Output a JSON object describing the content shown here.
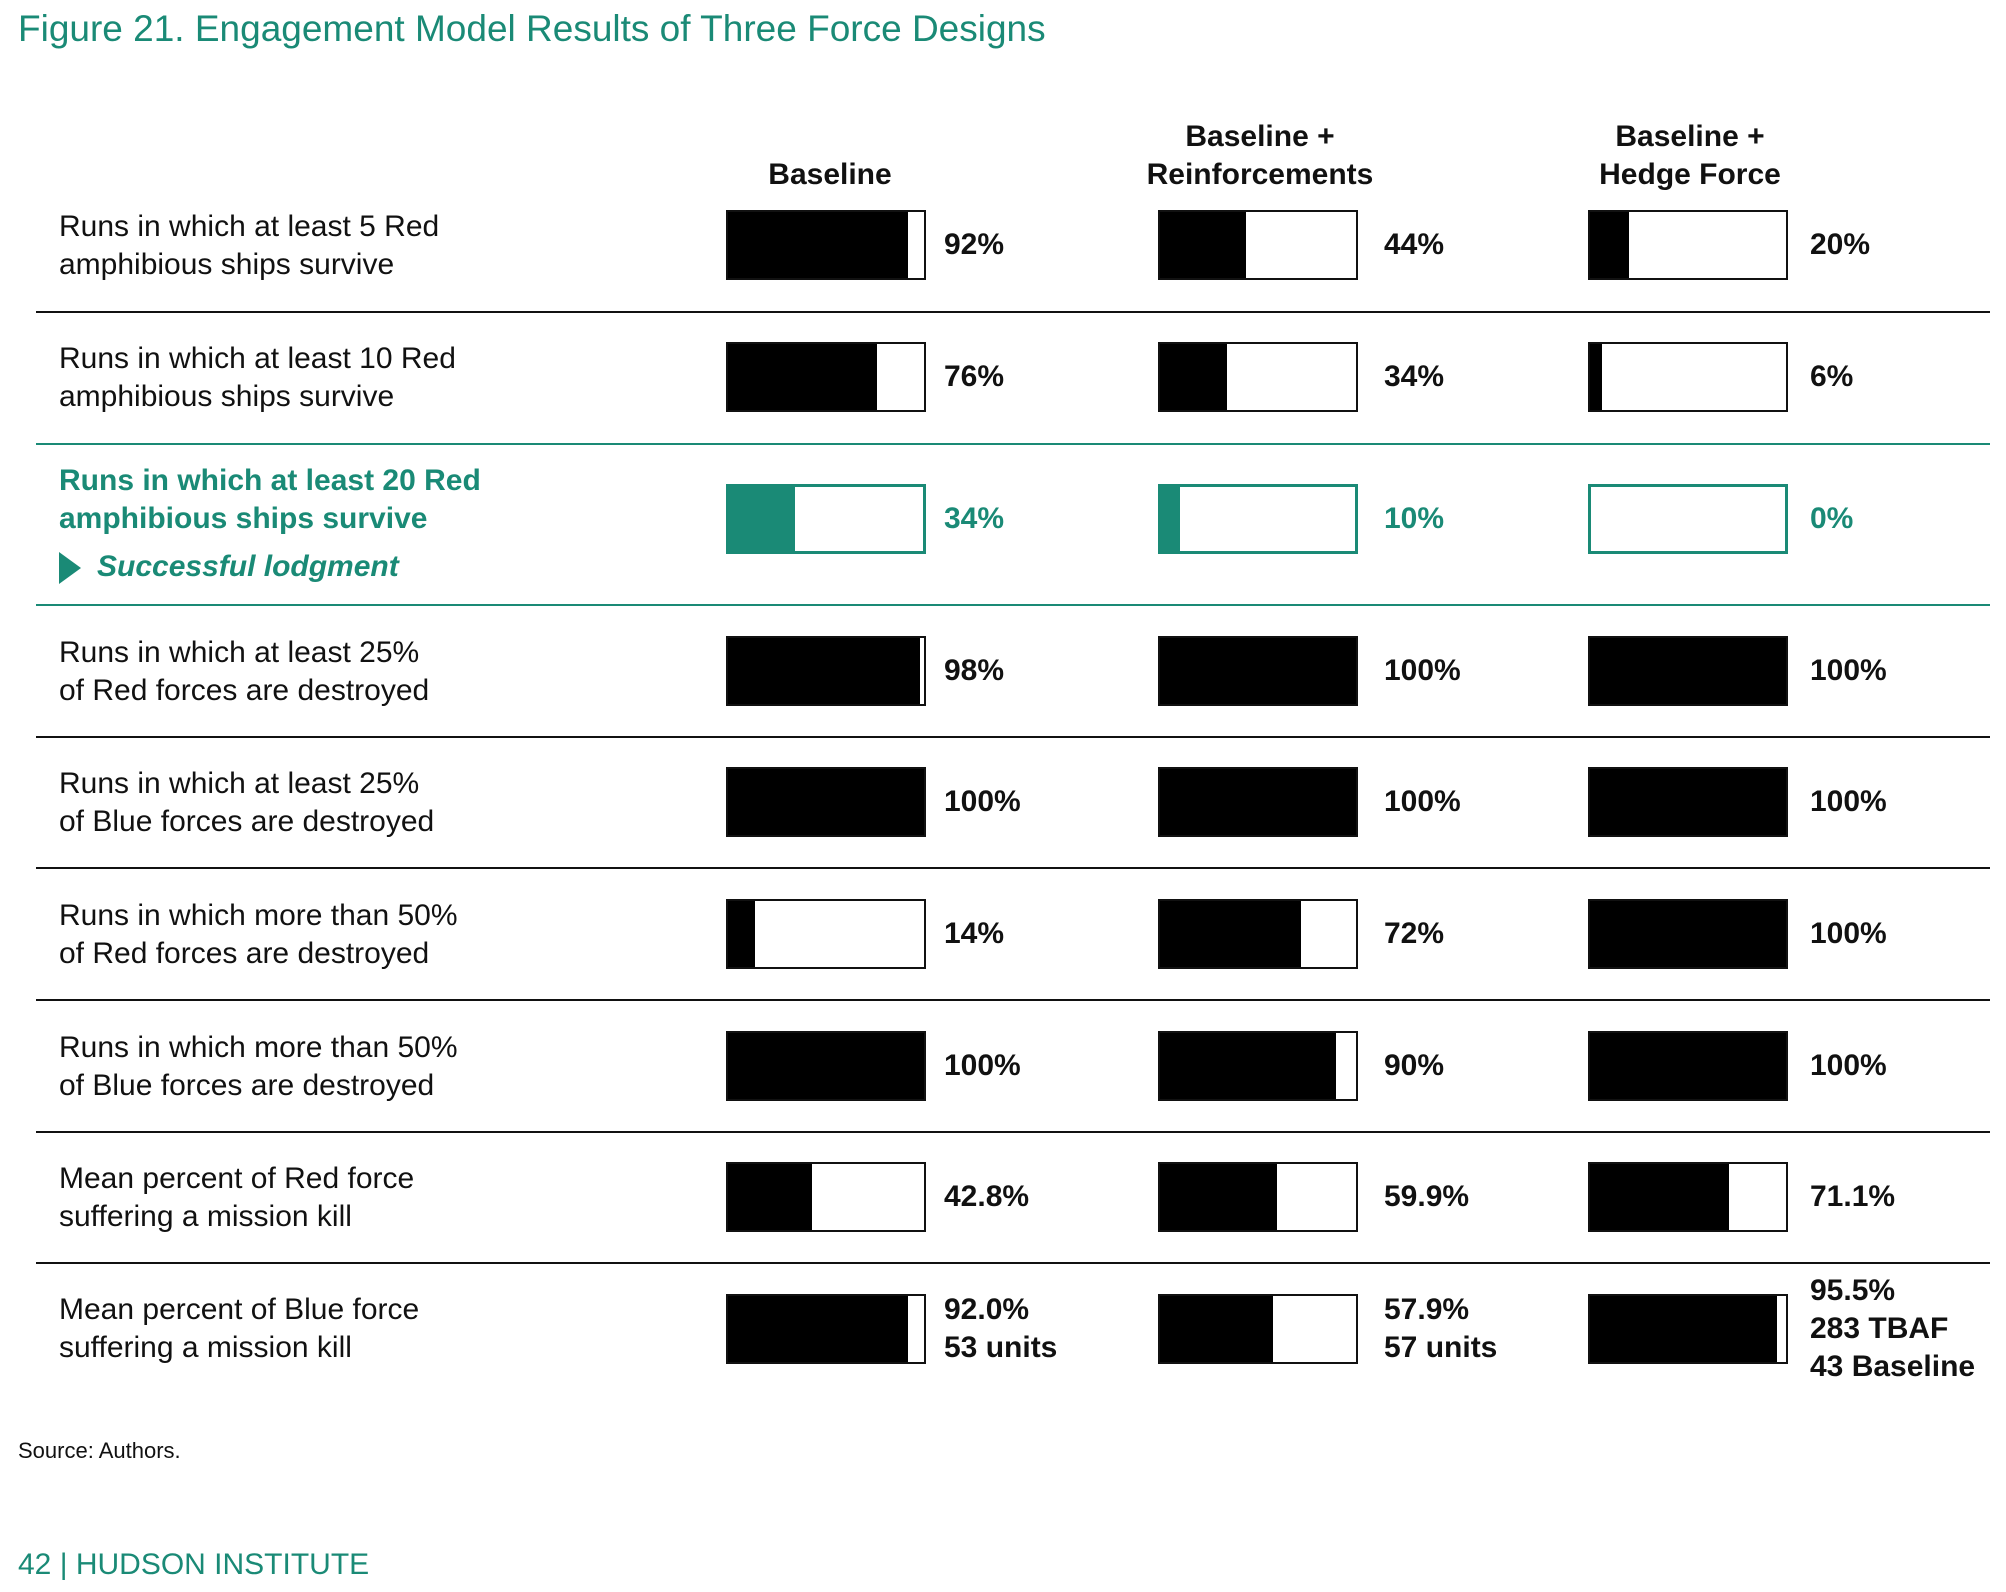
{
  "figure_title": "Figure 21. Engagement Model Results of Three Force Designs",
  "columns": [
    {
      "lines": [
        "Baseline"
      ]
    },
    {
      "lines": [
        "Baseline +",
        "Reinforcements"
      ]
    },
    {
      "lines": [
        "Baseline +",
        "Hedge Force"
      ]
    }
  ],
  "colors": {
    "accent": "#1a8a76",
    "bar_fill": "#000000",
    "divider": "#111111"
  },
  "chart_data": {
    "type": "bar",
    "orientation": "horizontal",
    "title": "Figure 21. Engagement Model Results of Three Force Designs",
    "xlim": [
      0,
      100
    ],
    "series": [
      {
        "name": "Baseline",
        "values": [
          92,
          76,
          34,
          98,
          100,
          14,
          100,
          42.8,
          92.0
        ]
      },
      {
        "name": "Baseline + Reinforcements",
        "values": [
          44,
          34,
          10,
          100,
          100,
          72,
          90,
          59.9,
          57.9
        ]
      },
      {
        "name": "Baseline + Hedge Force",
        "values": [
          20,
          6,
          0,
          100,
          100,
          100,
          100,
          71.1,
          95.5
        ]
      }
    ],
    "rows": [
      {
        "label": [
          "Runs in which at least 5 Red",
          "amphibious ships survive"
        ],
        "highlight": false,
        "values": [
          92,
          44,
          20
        ],
        "display": [
          [
            "92%"
          ],
          [
            "44%"
          ],
          [
            "20%"
          ]
        ]
      },
      {
        "label": [
          "Runs in which at least 10 Red",
          "amphibious ships survive"
        ],
        "highlight": false,
        "values": [
          76,
          34,
          6
        ],
        "display": [
          [
            "76%"
          ],
          [
            "34%"
          ],
          [
            "6%"
          ]
        ]
      },
      {
        "label": [
          "Runs in which at least 20 Red",
          "amphibious ships survive"
        ],
        "highlight": true,
        "note": "Successful lodgment",
        "values": [
          34,
          10,
          0
        ],
        "display": [
          [
            "34%"
          ],
          [
            "10%"
          ],
          [
            "0%"
          ]
        ]
      },
      {
        "label": [
          "Runs in which at least 25%",
          "of Red forces are destroyed"
        ],
        "highlight": false,
        "values": [
          98,
          100,
          100
        ],
        "display": [
          [
            "98%"
          ],
          [
            "100%"
          ],
          [
            "100%"
          ]
        ]
      },
      {
        "label": [
          "Runs in which at least 25%",
          "of Blue forces are destroyed"
        ],
        "highlight": false,
        "values": [
          100,
          100,
          100
        ],
        "display": [
          [
            "100%"
          ],
          [
            "100%"
          ],
          [
            "100%"
          ]
        ]
      },
      {
        "label": [
          "Runs in which more than 50%",
          "of Red forces are destroyed"
        ],
        "highlight": false,
        "values": [
          14,
          72,
          100
        ],
        "display": [
          [
            "14%"
          ],
          [
            "72%"
          ],
          [
            "100%"
          ]
        ]
      },
      {
        "label": [
          "Runs in which more than 50%",
          "of Blue forces are destroyed"
        ],
        "highlight": false,
        "values": [
          100,
          90,
          100
        ],
        "display": [
          [
            "100%"
          ],
          [
            "90%"
          ],
          [
            "100%"
          ]
        ]
      },
      {
        "label": [
          "Mean percent of Red force",
          "suffering a mission kill"
        ],
        "highlight": false,
        "values": [
          42.8,
          59.9,
          71.1
        ],
        "display": [
          [
            "42.8%"
          ],
          [
            "59.9%"
          ],
          [
            "71.1%"
          ]
        ]
      },
      {
        "label": [
          "Mean percent of Blue force",
          "suffering a mission kill"
        ],
        "highlight": false,
        "values": [
          92.0,
          57.9,
          95.5
        ],
        "display": [
          [
            "92.0%",
            "53 units"
          ],
          [
            "57.9%",
            "57 units"
          ],
          [
            "95.5%",
            "283 TBAF",
            "43 Baseline"
          ]
        ]
      }
    ]
  },
  "source": "Source: Authors.",
  "footer": "42 | HUDSON INSTITUTE"
}
